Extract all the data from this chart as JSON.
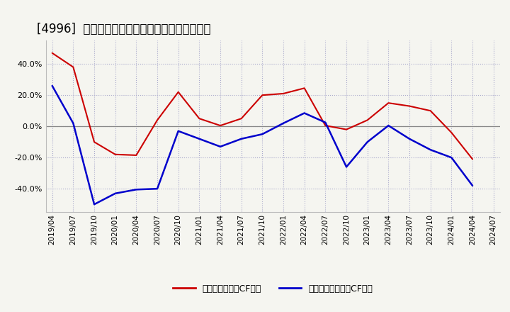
{
  "title": "[4996]  有利子負債キャッシュフロー比率の推移",
  "x_labels": [
    "2019/04",
    "2019/07",
    "2019/10",
    "2020/01",
    "2020/04",
    "2020/07",
    "2020/10",
    "2021/01",
    "2021/04",
    "2021/07",
    "2021/10",
    "2022/01",
    "2022/04",
    "2022/07",
    "2022/10",
    "2023/01",
    "2023/04",
    "2023/07",
    "2023/10",
    "2024/01",
    "2024/04",
    "2024/07"
  ],
  "red_values": [
    47.0,
    38.0,
    -10.0,
    -18.0,
    -18.5,
    4.0,
    22.0,
    5.0,
    0.5,
    5.0,
    20.0,
    21.0,
    24.5,
    0.5,
    -2.0,
    4.0,
    15.0,
    13.0,
    10.0,
    -4.0,
    -21.0,
    null
  ],
  "blue_values": [
    26.0,
    2.0,
    -50.0,
    -43.0,
    -40.5,
    -40.0,
    -3.0,
    -8.0,
    -13.0,
    -8.0,
    -5.0,
    2.0,
    8.5,
    2.5,
    -26.0,
    -10.0,
    0.5,
    -8.0,
    -15.0,
    -20.0,
    -38.0,
    null
  ],
  "red_color": "#cc0000",
  "blue_color": "#0000cc",
  "bg_color": "#f5f5f0",
  "plot_bg_color": "#f5f5f0",
  "grid_color": "#aaaacc",
  "zero_line_color": "#888888",
  "ylim": [
    -55,
    55
  ],
  "yticks": [
    -40.0,
    -20.0,
    0.0,
    20.0,
    40.0
  ],
  "legend_red": "有利子負債営業CF比率",
  "legend_blue": "有利子負債フリーCF比率",
  "title_fontsize": 12,
  "tick_fontsize": 7.5,
  "legend_fontsize": 9
}
